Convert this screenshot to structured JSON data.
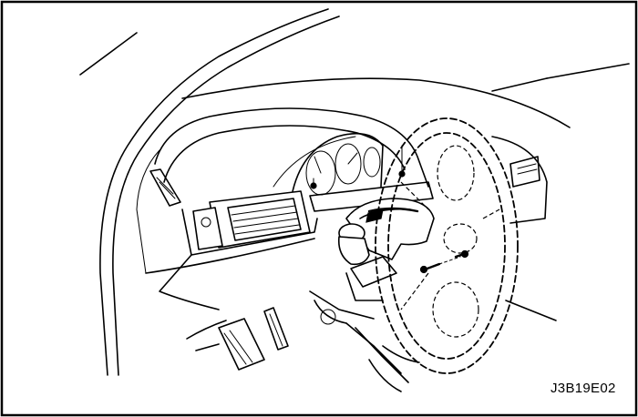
{
  "figure": {
    "code": "J3B19E02",
    "border_color": "#000000",
    "background_color": "#ffffff"
  }
}
